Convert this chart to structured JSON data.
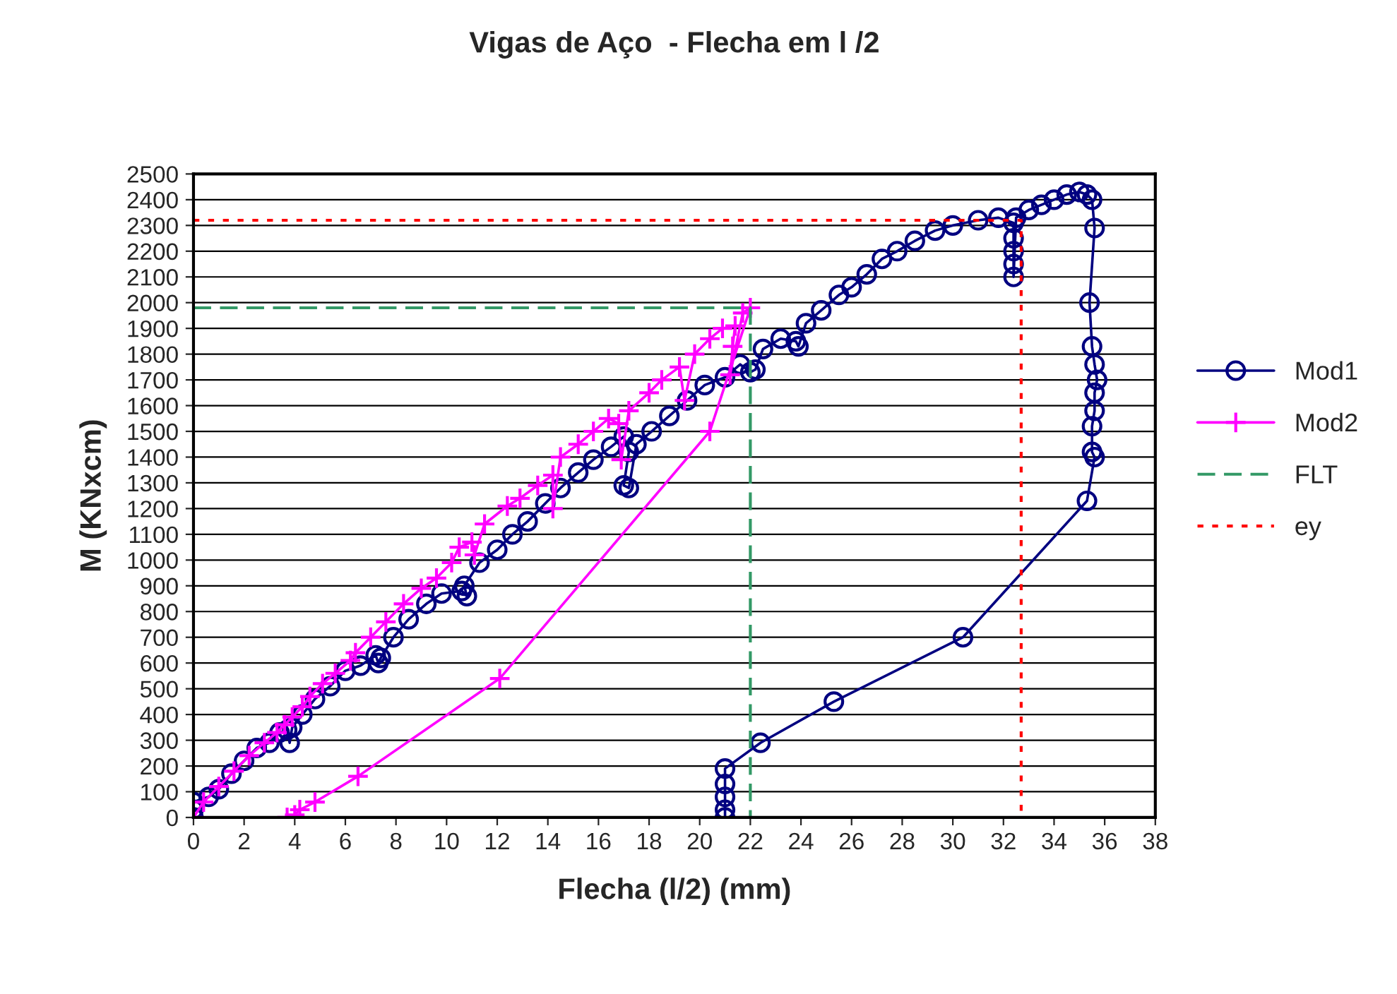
{
  "chart_data": {
    "type": "line",
    "title": "Vigas de Aço  - Flecha em l /2",
    "xlabel": "Flecha (l/2) (mm)",
    "ylabel": "M (KNxcm)",
    "xlim": [
      0,
      38
    ],
    "xticks": [
      0,
      2,
      4,
      6,
      8,
      10,
      12,
      14,
      16,
      18,
      20,
      22,
      24,
      26,
      28,
      30,
      32,
      34,
      36,
      38
    ],
    "ylim": [
      0,
      2500
    ],
    "yticks": [
      0,
      100,
      200,
      300,
      400,
      500,
      600,
      700,
      800,
      900,
      1000,
      1100,
      1200,
      1300,
      1400,
      1500,
      1600,
      1700,
      1800,
      1900,
      2000,
      2100,
      2200,
      2300,
      2400,
      2500
    ],
    "grid": "y",
    "legend": "right",
    "series": [
      {
        "name": "Mod1",
        "color": "#000080",
        "marker": "circle",
        "line_style": "solid",
        "x": [
          0,
          0,
          0,
          0.6,
          1,
          1.5,
          2,
          2.5,
          3,
          3.4,
          3.7,
          3.8,
          3.9,
          4.3,
          4.8,
          5.4,
          6,
          6.6,
          7.2,
          7.3,
          7.4,
          7.9,
          8.5,
          9.2,
          9.8,
          10.6,
          10.8,
          10.7,
          11.3,
          12,
          12.6,
          13.2,
          13.9,
          14.5,
          15.2,
          15.8,
          16.5,
          17,
          17.2,
          17,
          17.2,
          17.5,
          18.1,
          18.8,
          19.5,
          20.2,
          21,
          21.6,
          22,
          22.2,
          22.5,
          23.2,
          23.8,
          23.9,
          24.2,
          24.8,
          25.5,
          26,
          26.6,
          27.2,
          27.8,
          28.5,
          29.3,
          30,
          31,
          31.8,
          32.4,
          32.4,
          32.4,
          32.4,
          32.4,
          32.5,
          33,
          33.5,
          34,
          34.5,
          35,
          35.3,
          35.5,
          35.6,
          35.4,
          35.5,
          35.6,
          35.7,
          35.6,
          35.6,
          35.5,
          35.5,
          35.6,
          35.3,
          30.4,
          25.3,
          22.4,
          21,
          21,
          21,
          21,
          21
        ],
        "values": [
          0,
          30,
          60,
          80,
          110,
          170,
          220,
          270,
          290,
          330,
          340,
          290,
          350,
          400,
          460,
          510,
          570,
          590,
          630,
          600,
          620,
          700,
          770,
          830,
          870,
          880,
          860,
          900,
          990,
          1040,
          1100,
          1150,
          1220,
          1280,
          1340,
          1390,
          1440,
          1480,
          1420,
          1290,
          1280,
          1450,
          1500,
          1560,
          1620,
          1680,
          1710,
          1760,
          1730,
          1740,
          1820,
          1860,
          1850,
          1830,
          1920,
          1970,
          2030,
          2060,
          2110,
          2170,
          2200,
          2240,
          2280,
          2300,
          2320,
          2330,
          2310,
          2250,
          2200,
          2150,
          2100,
          2330,
          2360,
          2380,
          2400,
          2420,
          2430,
          2420,
          2400,
          2290,
          2000,
          1830,
          1760,
          1700,
          1650,
          1580,
          1520,
          1420,
          1400,
          1230,
          700,
          450,
          290,
          190,
          130,
          80,
          30,
          0
        ]
      },
      {
        "name": "Mod2",
        "color": "#ff00ff",
        "marker": "cross",
        "line_style": "solid",
        "x": [
          0,
          0.4,
          1,
          1.6,
          2.2,
          2.8,
          3.3,
          3.6,
          3.9,
          4.3,
          4.6,
          5.1,
          5.6,
          6.2,
          6.4,
          7,
          7.6,
          8.3,
          9,
          9.6,
          10.2,
          10.5,
          11,
          11.1,
          11.5,
          12.4,
          12.9,
          13.6,
          14.2,
          14.2,
          14.5,
          15.2,
          15.8,
          16.4,
          16.8,
          16.9,
          17.2,
          18,
          18.5,
          19.2,
          19.4,
          19.8,
          20.4,
          20.9,
          21.4,
          21.3,
          21.2,
          21.7,
          22,
          20.4,
          12.1,
          6.5,
          4.8,
          4.2,
          4,
          3.7
        ],
        "values": [
          0,
          60,
          120,
          180,
          240,
          290,
          330,
          360,
          390,
          430,
          470,
          520,
          560,
          610,
          640,
          700,
          760,
          830,
          890,
          930,
          990,
          1050,
          1070,
          1020,
          1140,
          1210,
          1240,
          1290,
          1330,
          1200,
          1400,
          1450,
          1500,
          1550,
          1530,
          1390,
          1580,
          1650,
          1700,
          1750,
          1620,
          1800,
          1860,
          1900,
          1910,
          1830,
          1720,
          1960,
          1980,
          1500,
          540,
          160,
          60,
          30,
          10,
          0
        ]
      },
      {
        "name": "FLT",
        "color": "#339966",
        "marker": "none",
        "line_style": "dashed",
        "x": [
          0,
          22,
          22
        ],
        "values": [
          1980,
          1980,
          0
        ]
      },
      {
        "name": "ey",
        "color": "#ff0000",
        "marker": "none",
        "line_style": "dotted",
        "x": [
          0,
          32.7,
          32.7
        ],
        "values": [
          2320,
          2320,
          0
        ]
      }
    ]
  }
}
